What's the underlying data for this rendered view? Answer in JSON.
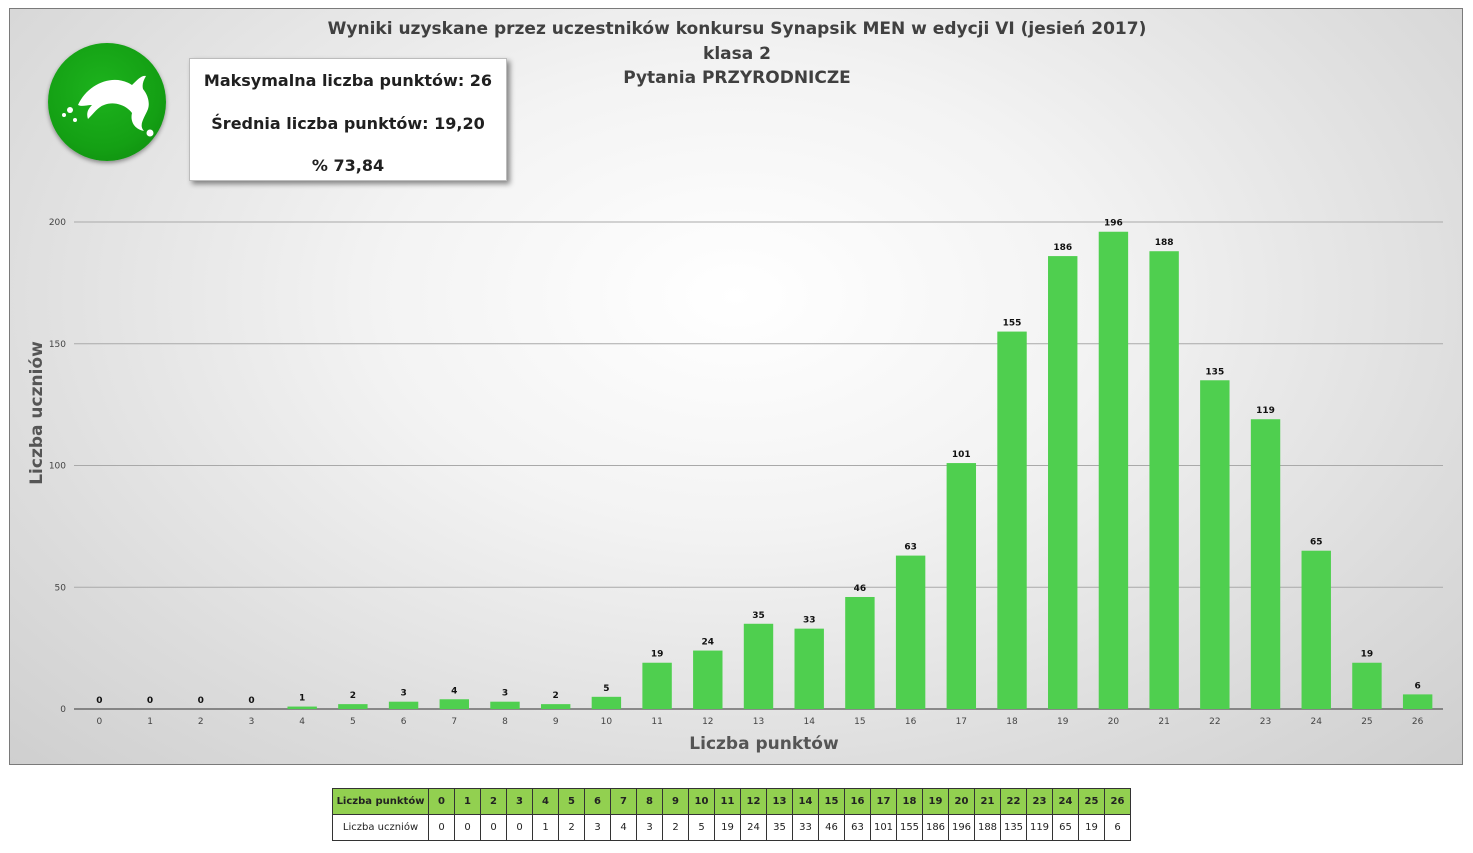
{
  "title_lines": [
    "Wyniki uzyskane przez uczestników konkursu Synapsik MEN w edycji VI (jesień 2017)",
    "klasa 2",
    "Pytania PRZYRODNICZE"
  ],
  "stats": {
    "max_points": "Maksymalna liczba punktów: 26",
    "avg_points": "Średnia liczba punktów: 19,20",
    "percent": "% 73,84"
  },
  "logo_icon": "dolphin-icon",
  "colors": {
    "bar": "#4fcf4f",
    "table_header": "#92d050",
    "logo": "#14a014"
  },
  "chart_data": {
    "type": "bar",
    "categories": [
      "0",
      "1",
      "2",
      "3",
      "4",
      "5",
      "6",
      "7",
      "8",
      "9",
      "10",
      "11",
      "12",
      "13",
      "14",
      "15",
      "16",
      "17",
      "18",
      "19",
      "20",
      "21",
      "22",
      "23",
      "24",
      "25",
      "26"
    ],
    "values": [
      0,
      0,
      0,
      0,
      1,
      2,
      3,
      4,
      3,
      2,
      5,
      19,
      24,
      35,
      33,
      46,
      63,
      101,
      155,
      186,
      196,
      188,
      135,
      119,
      65,
      19,
      6
    ],
    "xlabel": "Liczba punktów",
    "ylabel": "Liczba uczniów",
    "ylim": [
      0,
      200
    ],
    "yticks": [
      0,
      50,
      100,
      150,
      200
    ],
    "grid": true,
    "data_labels": true
  },
  "table": {
    "row1_header": "Liczba punktów",
    "row2_header": "Liczba uczniów"
  }
}
